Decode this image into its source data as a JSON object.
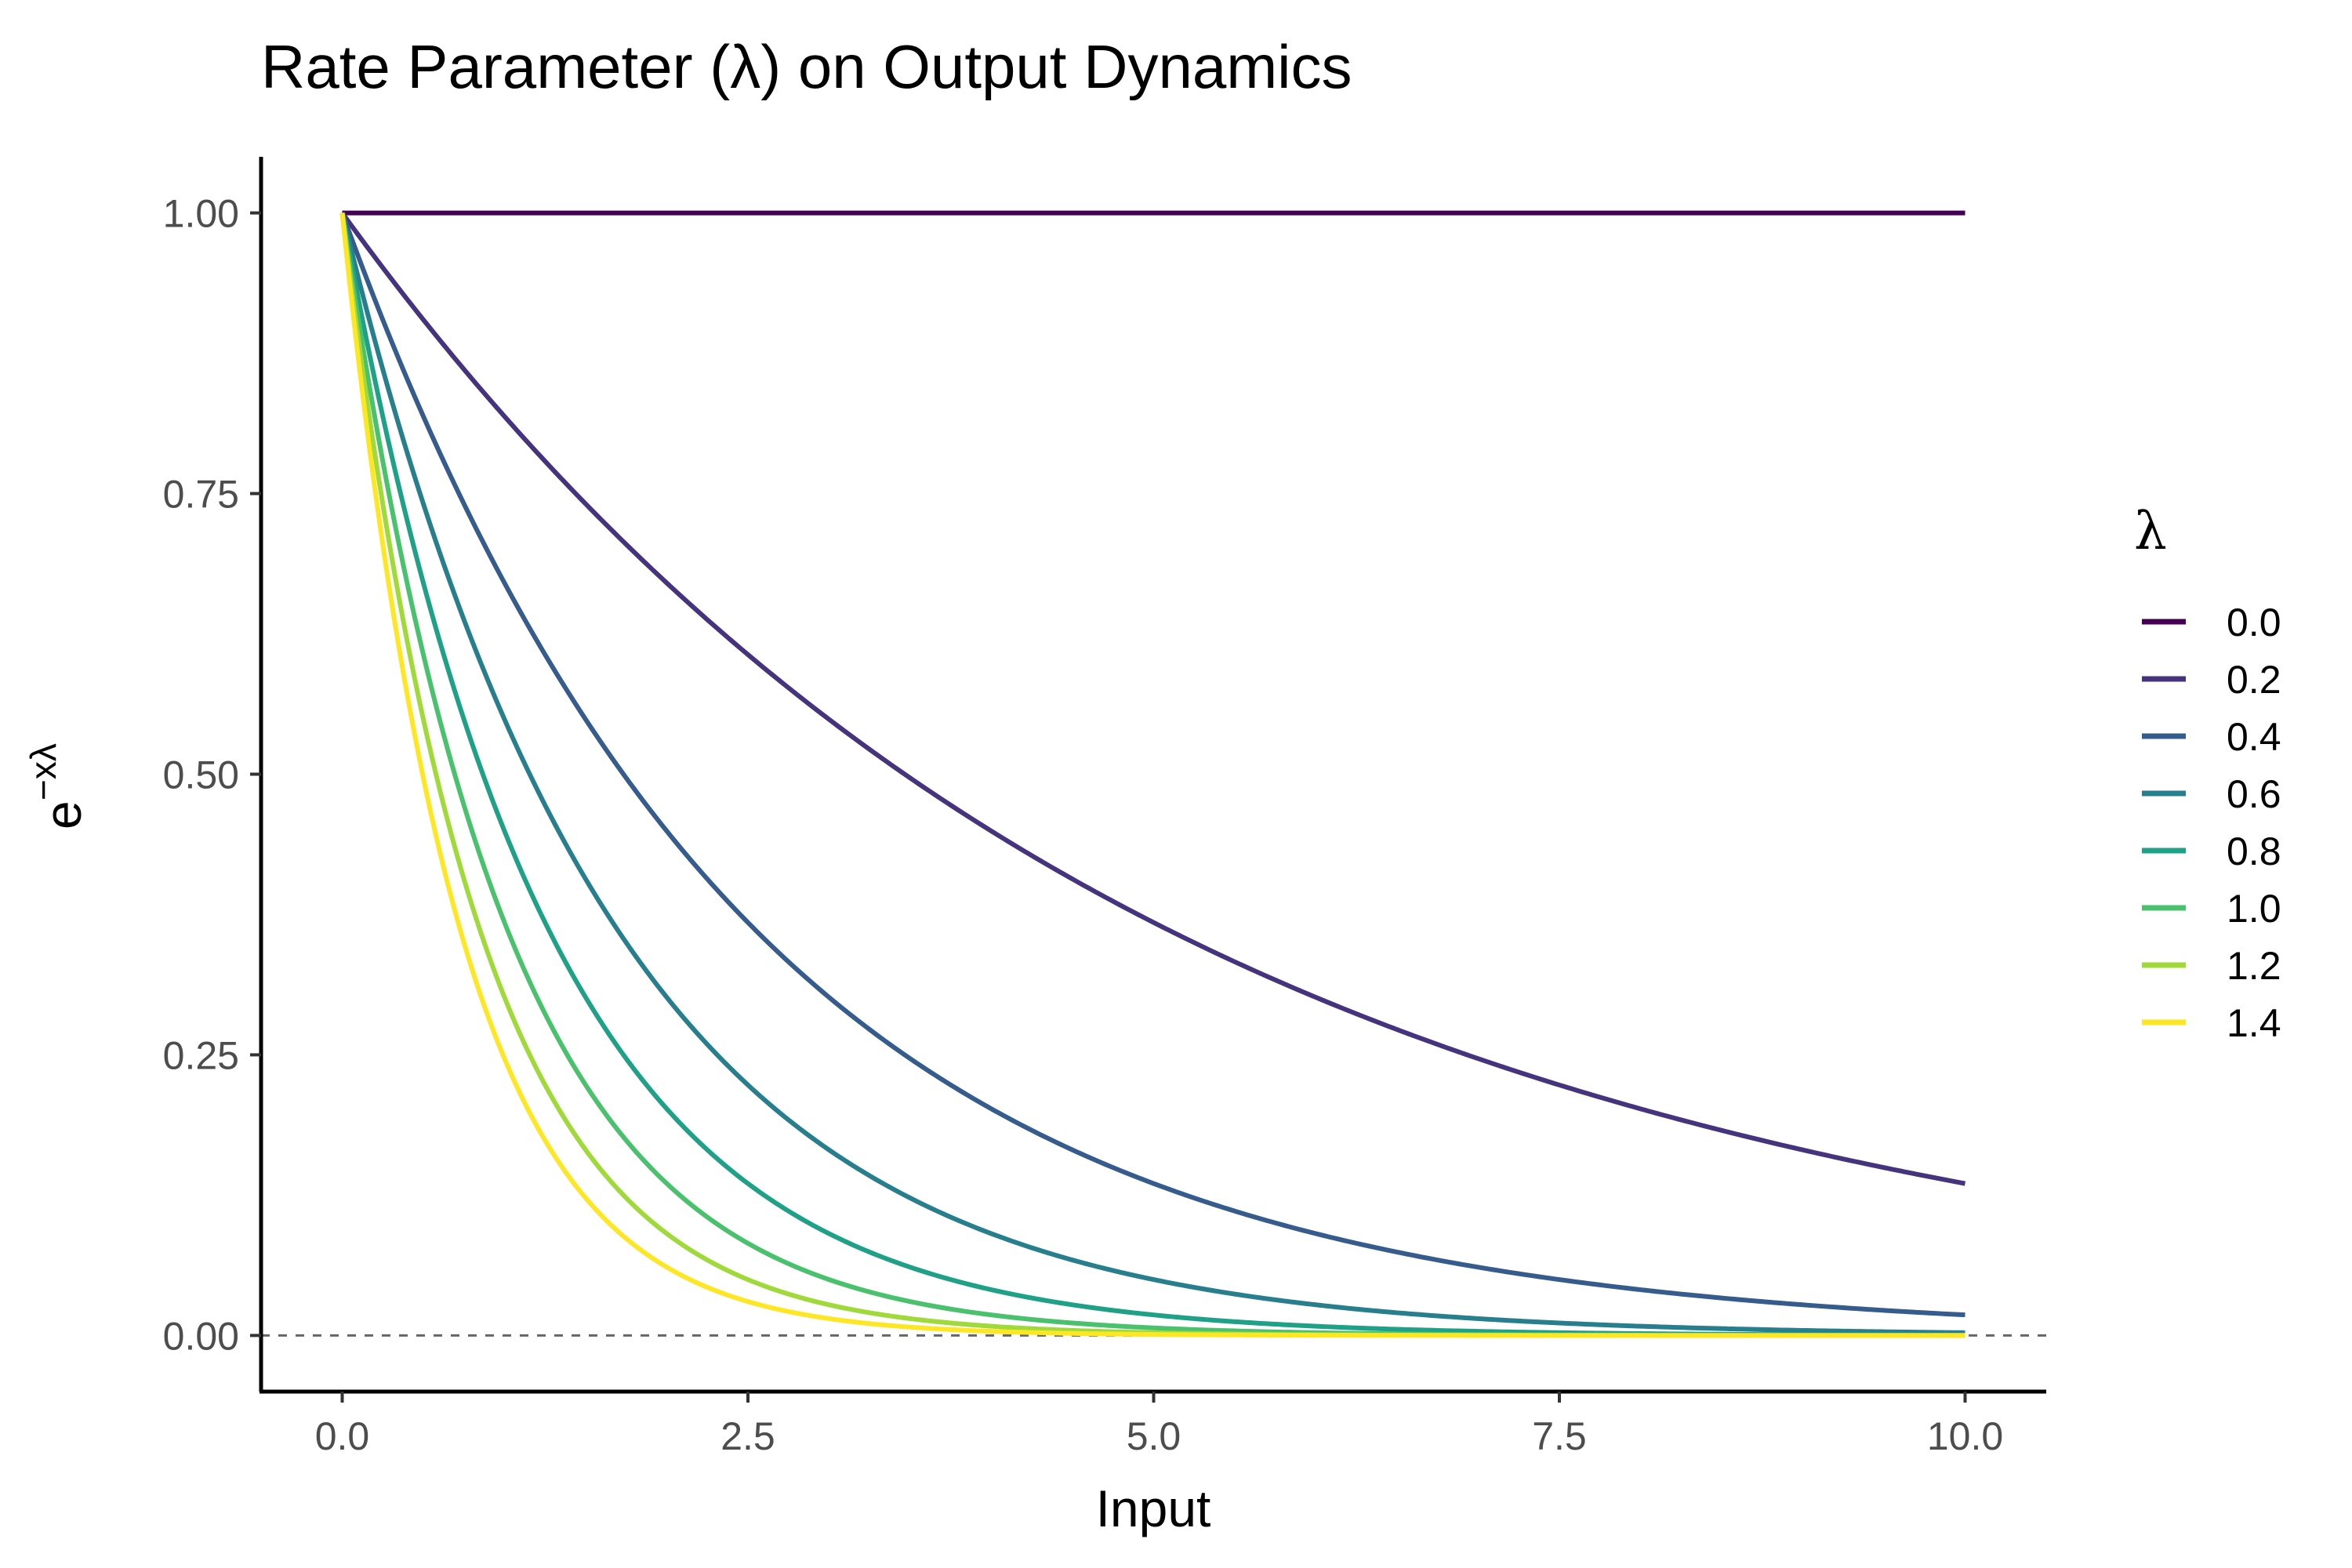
{
  "chart_data": {
    "type": "line",
    "title": "Rate Parameter (λ) on Output Dynamics",
    "xlabel": "Input",
    "ylabel_base": "e",
    "ylabel_exponent": "−xλ",
    "xlim": [
      -0.5,
      10.5
    ],
    "ylim": [
      -0.05,
      1.05
    ],
    "x_ticks": [
      0,
      2.5,
      5,
      7.5,
      10
    ],
    "x_tick_labels": [
      "0.0",
      "2.5",
      "5.0",
      "7.5",
      "10.0"
    ],
    "y_ticks": [
      0,
      0.25,
      0.5,
      0.75,
      1
    ],
    "y_tick_labels": [
      "0.00",
      "0.25",
      "0.50",
      "0.75",
      "1.00"
    ],
    "x_range": [
      0,
      10
    ],
    "function": "exp(-x*lambda)",
    "reference_line": {
      "y": 0,
      "style": "dashed",
      "color": "#666666"
    },
    "grid": false,
    "legend": {
      "title": "λ",
      "position": "right"
    },
    "series": [
      {
        "name": "0.0",
        "lambda": 0.0,
        "color": "#440154"
      },
      {
        "name": "0.2",
        "lambda": 0.2,
        "color": "#46337E"
      },
      {
        "name": "0.4",
        "lambda": 0.4,
        "color": "#365C8D"
      },
      {
        "name": "0.6",
        "lambda": 0.6,
        "color": "#277F8E"
      },
      {
        "name": "0.8",
        "lambda": 0.8,
        "color": "#1FA187"
      },
      {
        "name": "1.0",
        "lambda": 1.0,
        "color": "#4AC16D"
      },
      {
        "name": "1.2",
        "lambda": 1.2,
        "color": "#9FDA3A"
      },
      {
        "name": "1.4",
        "lambda": 1.4,
        "color": "#FDE725"
      }
    ]
  }
}
